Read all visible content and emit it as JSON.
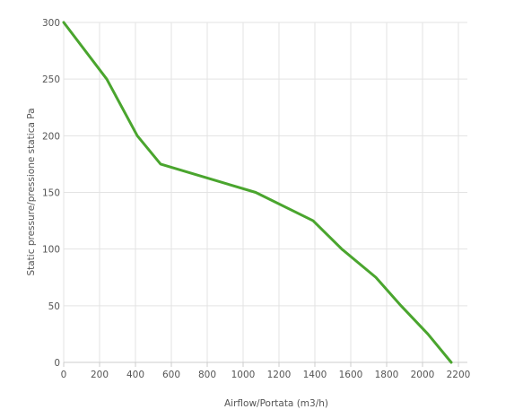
{
  "chart_data": {
    "type": "line",
    "title": "",
    "xlabel": "Airflow/Portata (m3/h)",
    "ylabel": "Static pressure/pressione statica Pa",
    "xlim": [
      0,
      2250
    ],
    "ylim": [
      0,
      300
    ],
    "x_ticks": [
      0,
      200,
      400,
      600,
      800,
      1000,
      1200,
      1400,
      1600,
      1800,
      2000,
      2200
    ],
    "y_ticks": [
      0,
      50,
      100,
      150,
      200,
      250,
      300
    ],
    "grid": true,
    "legend": "none",
    "series": [
      {
        "color": "#4aa52e",
        "points": [
          [
            0,
            300
          ],
          [
            240,
            250
          ],
          [
            410,
            200
          ],
          [
            540,
            175
          ],
          [
            1070,
            150
          ],
          [
            1390,
            125
          ],
          [
            1550,
            100
          ],
          [
            1740,
            75
          ],
          [
            1880,
            50
          ],
          [
            2030,
            25
          ],
          [
            2160,
            0
          ]
        ]
      }
    ]
  },
  "colors": {
    "grid": "#e3e3e3",
    "axis": "#cccccc",
    "text": "#555555"
  }
}
